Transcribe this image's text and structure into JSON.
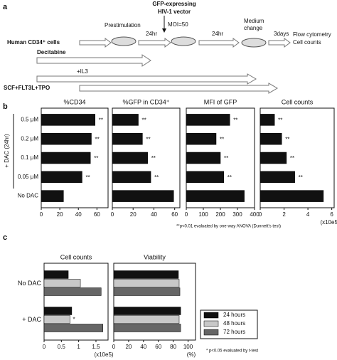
{
  "panel_labels": [
    "a",
    "b",
    "c"
  ],
  "schematic": {
    "cells": "Human CD34⁺ cells",
    "prestimulation": "Prestimulation",
    "step1": "24hr",
    "vector": [
      "GFP-expressing",
      "HIV-1 vector"
    ],
    "moi": "MOI=50",
    "step2": "24hr",
    "medium": [
      "Medium",
      "change"
    ],
    "step3": "3days",
    "readout": [
      "Flow cytometry",
      "Cell counts"
    ],
    "treatments": [
      "Decitabine",
      "+IL3",
      "SCF+FLT3L+TPO"
    ]
  },
  "panel_b": {
    "group_label": "+ DAC (24hr)",
    "footnote": "**p<0.01 evaluated by one-way ANOVA (Dunnett's test)"
  },
  "panel_c": {
    "footnote": "* p<0.05 evaluated by t-test"
  },
  "chart_data": [
    {
      "type": "hbar",
      "title": "%CD34",
      "categories": [
        "0.5 μM",
        "0.2 μM",
        "0.1 μM",
        "0.05 μM",
        "No DAC"
      ],
      "values": [
        58,
        54,
        53,
        44,
        24
      ],
      "significance": [
        "**",
        "**",
        "**",
        "**",
        null
      ],
      "color": "#111111",
      "xlim": [
        0,
        72
      ],
      "xticks": [
        0,
        20,
        40,
        60
      ]
    },
    {
      "type": "hbar",
      "title": "%GFP in CD34⁺",
      "values": [
        25,
        29,
        34,
        37,
        59
      ],
      "significance": [
        "**",
        "**",
        "**",
        "**",
        null
      ],
      "color": "#111111",
      "xlim": [
        0,
        65
      ],
      "xticks": [
        0,
        20,
        40,
        60
      ]
    },
    {
      "type": "hbar",
      "title": "MFI of GFP",
      "values": [
        255,
        175,
        200,
        220,
        340
      ],
      "significance": [
        "**",
        "**",
        "**",
        "**",
        null
      ],
      "color": "#111111",
      "xlim": [
        0,
        400
      ],
      "xticks": [
        0,
        100,
        200,
        300,
        400
      ]
    },
    {
      "type": "hbar",
      "title": "Cell counts",
      "values": [
        1.2,
        1.8,
        2.2,
        2.9,
        5.3
      ],
      "significance": [
        "**",
        "**",
        "**",
        "**",
        null
      ],
      "color": "#111111",
      "xlim": [
        0,
        6.2
      ],
      "xticks": [
        0,
        2,
        4,
        6
      ],
      "xlabel": "(x10e5)"
    },
    {
      "type": "grouped_hbar",
      "title": "Cell counts",
      "categories": [
        "No DAC",
        "+ DAC"
      ],
      "series": [
        {
          "name": "24 hours",
          "color": "#111111",
          "values": [
            0.7,
            0.8
          ]
        },
        {
          "name": "48 hours",
          "color": "#c8c8c8",
          "values": [
            1.05,
            0.75
          ],
          "significance": [
            null,
            "*"
          ]
        },
        {
          "name": "72 hours",
          "color": "#666666",
          "values": [
            1.65,
            1.7
          ]
        }
      ],
      "xlim": [
        0,
        1.85
      ],
      "xticks": [
        0,
        0.5,
        1,
        1.5
      ],
      "xlabel": "(x10e5)",
      "legend": "right"
    },
    {
      "type": "grouped_hbar",
      "title": "Viability",
      "series": [
        {
          "color": "#111111",
          "values": [
            87,
            90
          ]
        },
        {
          "color": "#c8c8c8",
          "values": [
            88,
            88
          ]
        },
        {
          "color": "#666666",
          "values": [
            89,
            90
          ]
        }
      ],
      "xlim": [
        0,
        110
      ],
      "xticks": [
        0,
        20,
        40,
        60,
        80,
        100
      ],
      "xlabel": "(%)"
    }
  ]
}
